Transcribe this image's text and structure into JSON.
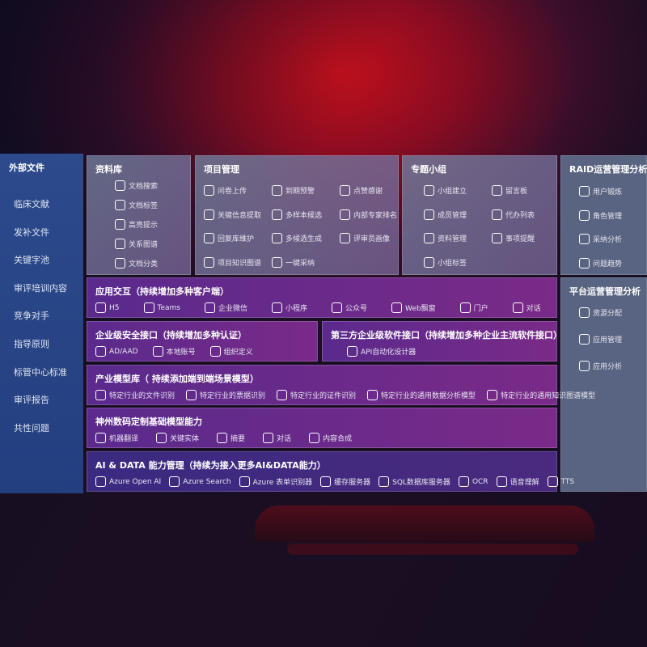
{
  "sidebar": {
    "title": "外部文件",
    "items": [
      "临床文献",
      "发补文件",
      "关键字池",
      "审评培训内容",
      "竞争对手",
      "指导原则",
      "标管中心标准",
      "审评报告",
      "共性问题"
    ]
  },
  "library": {
    "title": "资料库",
    "items": [
      {
        "label": "文档搜索",
        "icon": "document-search-icon"
      },
      {
        "label": "文档标签",
        "icon": "tag-icon"
      },
      {
        "label": "高亮提示",
        "icon": "pen-icon"
      },
      {
        "label": "关系图谱",
        "icon": "graph-icon"
      },
      {
        "label": "文档分类",
        "icon": "document-list-icon"
      }
    ]
  },
  "project": {
    "title": "项目管理",
    "items": [
      {
        "label": "问卷上传",
        "icon": "cloud-upload-icon"
      },
      {
        "label": "到期预警",
        "icon": "alarm-icon"
      },
      {
        "label": "点赞感谢",
        "icon": "thumbs-up-icon"
      },
      {
        "label": "关键信息提取",
        "icon": "window-icon"
      },
      {
        "label": "多样本候选",
        "icon": "reply-icon"
      },
      {
        "label": "内部专家排名",
        "icon": "ranking-icon"
      },
      {
        "label": "回复库维护",
        "icon": "edit-icon"
      },
      {
        "label": "多候选生成",
        "icon": "puzzle-icon"
      },
      {
        "label": "评审员画像",
        "icon": "user-icon"
      },
      {
        "label": "项目知识图谱",
        "icon": "graph-icon"
      },
      {
        "label": "一键采纳",
        "icon": "reply-icon"
      }
    ]
  },
  "group": {
    "title": "专题小组",
    "items": [
      {
        "label": "小组建立",
        "icon": "users-icon"
      },
      {
        "label": "留言板",
        "icon": "bbs-icon"
      },
      {
        "label": "成员管理",
        "icon": "user-add-icon"
      },
      {
        "label": "代办列表",
        "icon": "clipboard-icon"
      },
      {
        "label": "资料管理",
        "icon": "folder-icon"
      },
      {
        "label": "事项提醒",
        "icon": "bell-icon"
      },
      {
        "label": "小组标签",
        "icon": "tag-icon"
      }
    ]
  },
  "raid": {
    "title": "RAID运营管理分析",
    "items": [
      {
        "label": "用户锻炼",
        "icon": "id-card-icon"
      },
      {
        "label": "角色管理",
        "icon": "users-icon"
      },
      {
        "label": "采纳分析",
        "icon": "qa-icon"
      },
      {
        "label": "问题趋势",
        "icon": "trend-icon"
      }
    ]
  },
  "platform": {
    "title": "平台运营管理分析",
    "items": [
      {
        "label": "资源分配",
        "icon": "checklist-icon"
      },
      {
        "label": "应用管理",
        "icon": "apps-icon"
      },
      {
        "label": "应用分析",
        "icon": "chart-icon"
      }
    ]
  },
  "rows": [
    {
      "title": "应用交互（持续增加多种客户端）",
      "items": [
        {
          "label": "H5",
          "icon": "html5-icon"
        },
        {
          "label": "Teams",
          "icon": "teams-icon"
        },
        {
          "label": "企业微信",
          "icon": "wechat-icon"
        },
        {
          "label": "小程序",
          "icon": "mini-program-icon"
        },
        {
          "label": "公众号",
          "icon": "users-icon"
        },
        {
          "label": "Web飘窗",
          "icon": "window-icon"
        },
        {
          "label": "门户",
          "icon": "portal-icon"
        },
        {
          "label": "对话",
          "icon": "chat-icon"
        }
      ]
    },
    {
      "title": "企业级安全接口（持续增加多种认证）",
      "items": [
        {
          "label": "AD/AAD",
          "icon": "diamond-icon"
        },
        {
          "label": "本地账号",
          "icon": "user-icon"
        },
        {
          "label": "组织定义",
          "icon": "org-icon"
        }
      ]
    },
    {
      "title": "第三方企业级软件接口（持续增加多种企业主流软件接口）",
      "items": [
        {
          "label": "API自动化设计器",
          "icon": "gear-icon"
        }
      ]
    },
    {
      "title": "产业模型库（ 持续添加端到端场景模型）",
      "items": [
        {
          "label": "特定行业的文件识别",
          "icon": "file-icon"
        },
        {
          "label": "特定行业的票据识别",
          "icon": "receipt-icon"
        },
        {
          "label": "特定行业的证件识别",
          "icon": "id-card-icon"
        },
        {
          "label": "特定行业的通用数据分析模型",
          "icon": "chart-icon"
        },
        {
          "label": "特定行业的通用知识图谱模型",
          "icon": "graph-icon"
        }
      ]
    },
    {
      "title": "神州数码定制基础模型能力",
      "items": [
        {
          "label": "机器翻译",
          "icon": "translate-icon"
        },
        {
          "label": "关键实体",
          "icon": "entity-icon"
        },
        {
          "label": "摘要",
          "icon": "document-icon"
        },
        {
          "label": "对话",
          "icon": "chat-icon"
        },
        {
          "label": "内容合成",
          "icon": "puzzle-icon"
        }
      ]
    },
    {
      "title": "AI & DATA 能力管理（持续为接入更多AI&DATA能力）",
      "items": [
        {
          "label": "Azure Open AI",
          "icon": "openai-icon"
        },
        {
          "label": "Azure Search",
          "icon": "search-icon"
        },
        {
          "label": "Azure 表单识别器",
          "icon": "form-icon"
        },
        {
          "label": "缓存服务器",
          "icon": "server-icon"
        },
        {
          "label": "SQL数据库服务器",
          "icon": "database-icon"
        },
        {
          "label": "OCR",
          "icon": "ocr-icon"
        },
        {
          "label": "语音理解",
          "icon": "microphone-icon"
        },
        {
          "label": "TTS",
          "icon": "speaker-icon"
        }
      ]
    }
  ]
}
